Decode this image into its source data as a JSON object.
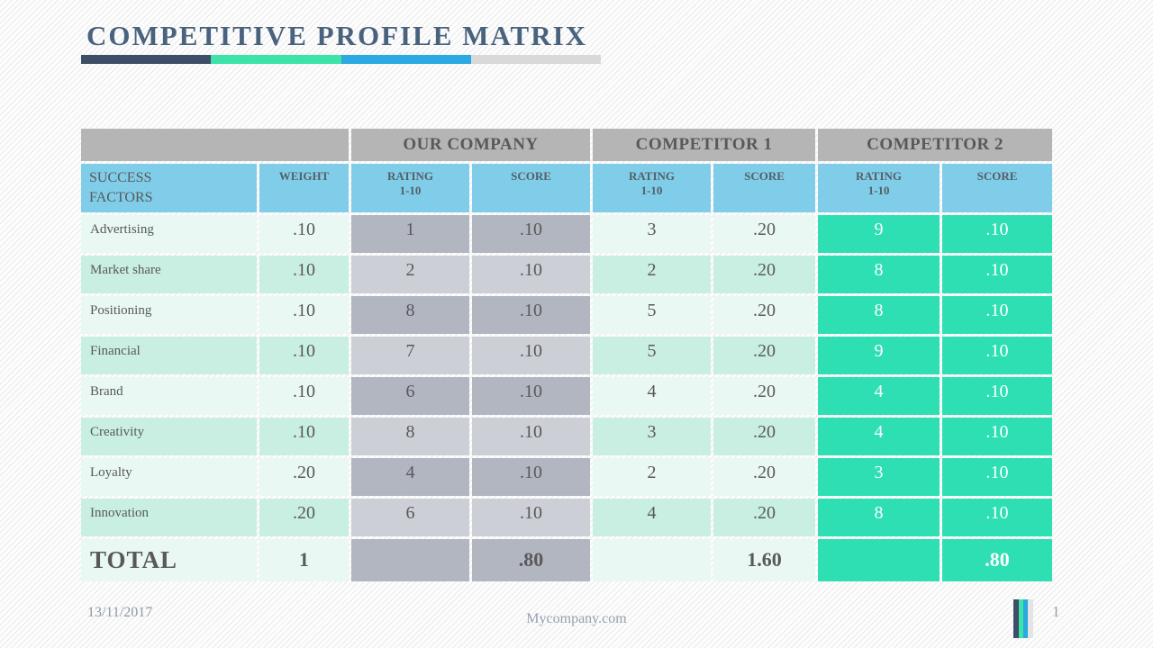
{
  "slide": {
    "title": "COMPETITIVE PROFILE MATRIX",
    "colors": {
      "title": "#49637E",
      "accent_navy": "#3D4E66",
      "accent_green": "#3EE3A9",
      "accent_blue": "#2BA9E0",
      "accent_gray": "#D9D9D9",
      "header_band_gray": "#B5B5B5",
      "header_blue": "#7FCDE9",
      "row_mint_light": "#E9F8F2",
      "row_mint_dark": "#C9EFE2",
      "cell_gray_dark": "#B1B6C1",
      "cell_gray_light": "#CDCFD7",
      "highlight_teal": "#2EDFB3",
      "cell_text": "#595959",
      "footer_text": "#97A1B0"
    }
  },
  "table": {
    "groups": [
      "OUR COMPANY",
      "COMPETITOR 1",
      "COMPETITOR 2"
    ],
    "columns": {
      "success_factors": "SUCCESS FACTORS",
      "weight": "WEIGHT",
      "rating_label": "RATING",
      "rating_range": "1-10",
      "score": "SCORE"
    },
    "rows": [
      {
        "factor": "Advertising",
        "weight": ".10",
        "our_rating": "1",
        "our_score": ".10",
        "c1_rating": "3",
        "c1_score": ".20",
        "c2_rating": "9",
        "c2_score": ".10"
      },
      {
        "factor": "Market share",
        "weight": ".10",
        "our_rating": "2",
        "our_score": ".10",
        "c1_rating": "2",
        "c1_score": ".20",
        "c2_rating": "8",
        "c2_score": ".10"
      },
      {
        "factor": "Positioning",
        "weight": ".10",
        "our_rating": "8",
        "our_score": ".10",
        "c1_rating": "5",
        "c1_score": ".20",
        "c2_rating": "8",
        "c2_score": ".10"
      },
      {
        "factor": "Financial",
        "weight": ".10",
        "our_rating": "7",
        "our_score": ".10",
        "c1_rating": "5",
        "c1_score": ".20",
        "c2_rating": "9",
        "c2_score": ".10"
      },
      {
        "factor": "Brand",
        "weight": ".10",
        "our_rating": "6",
        "our_score": ".10",
        "c1_rating": "4",
        "c1_score": ".20",
        "c2_rating": "4",
        "c2_score": ".10"
      },
      {
        "factor": "Creativity",
        "weight": ".10",
        "our_rating": "8",
        "our_score": ".10",
        "c1_rating": "3",
        "c1_score": ".20",
        "c2_rating": "4",
        "c2_score": ".10"
      },
      {
        "factor": "Loyalty",
        "weight": ".20",
        "our_rating": "4",
        "our_score": ".10",
        "c1_rating": "2",
        "c1_score": ".20",
        "c2_rating": "3",
        "c2_score": ".10"
      },
      {
        "factor": "Innovation",
        "weight": ".20",
        "our_rating": "6",
        "our_score": ".10",
        "c1_rating": "4",
        "c1_score": ".20",
        "c2_rating": "8",
        "c2_score": ".10"
      }
    ],
    "total": {
      "label": "TOTAL",
      "weight": "1",
      "our_score": ".80",
      "c1_score": "1.60",
      "c2_score": ".80"
    }
  },
  "footer": {
    "date": "13/11/2017",
    "website": "Mycompany.com",
    "page_number": "1"
  }
}
